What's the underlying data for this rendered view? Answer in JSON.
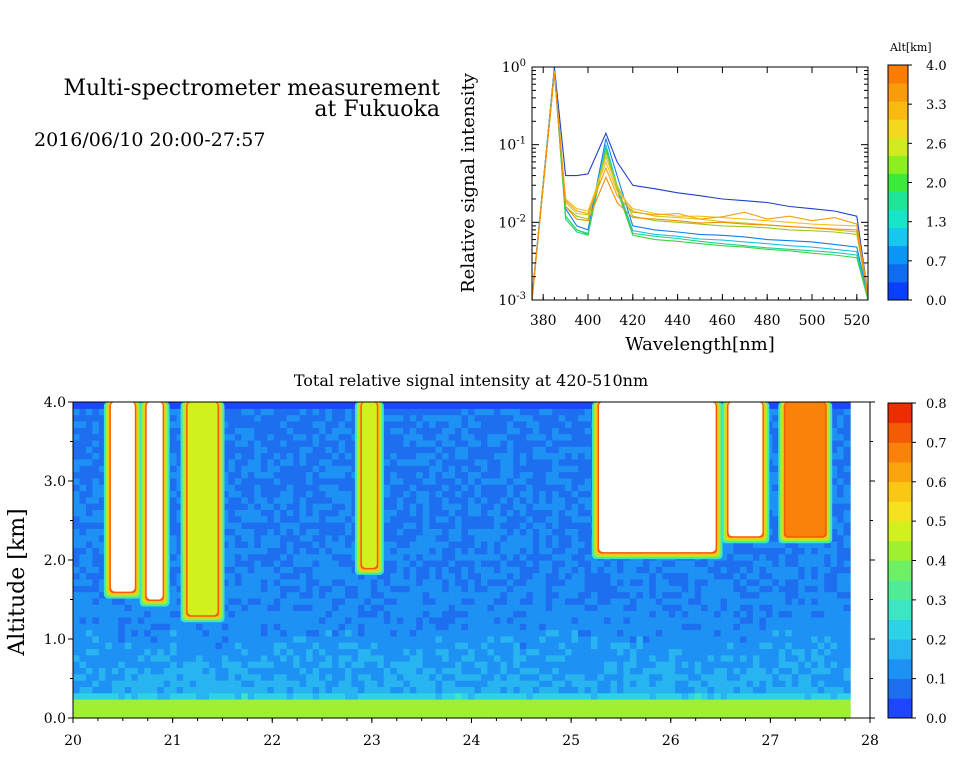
{
  "header": {
    "title_line1": "Multi-spectrometer measurement",
    "title_line2": "at Fukuoka",
    "datetime": "2016/06/10 20:00-27:57"
  },
  "chart_data": [
    {
      "type": "line",
      "xlabel": "Wavelength[nm]",
      "ylabel": "Relative signal intensity",
      "yscale": "log",
      "xlim": [
        375,
        525
      ],
      "ylim": [
        0.001,
        1
      ],
      "xticks": [
        380,
        400,
        420,
        440,
        460,
        480,
        500,
        520
      ],
      "yticks": [
        {
          "value": 0.001,
          "base": "10",
          "exp": "-3"
        },
        {
          "value": 0.01,
          "base": "10",
          "exp": "-2"
        },
        {
          "value": 0.1,
          "base": "10",
          "exp": "-1"
        },
        {
          "value": 1,
          "base": "10",
          "exp": "0"
        }
      ],
      "colorbar": {
        "title": "Alt[km]",
        "ticks": [
          "0.0",
          "0.7",
          "1.3",
          "2.0",
          "2.6",
          "3.3",
          "4.0"
        ],
        "colors": [
          "#0a3fff",
          "#0f6bf0",
          "#0a96f5",
          "#16c8f0",
          "#15e6c8",
          "#1ee696",
          "#3cea3c",
          "#8cf01e",
          "#d2eb1e",
          "#f5d71e",
          "#fab90f",
          "#fa9b0a",
          "#fa7d00"
        ]
      },
      "x": [
        375,
        385,
        390,
        395,
        400,
        408,
        413,
        420,
        430,
        440,
        450,
        460,
        470,
        480,
        490,
        500,
        510,
        520,
        525
      ],
      "series": [
        {
          "color": "#1f3fc6",
          "values": [
            0.001,
            1,
            0.04,
            0.04,
            0.042,
            0.14,
            0.06,
            0.03,
            0.027,
            0.024,
            0.022,
            0.02,
            0.019,
            0.018,
            0.016,
            0.015,
            0.014,
            0.012,
            0.0012
          ]
        },
        {
          "color": "#0f7ff0",
          "values": [
            0.0011,
            0.93,
            0.015,
            0.009,
            0.008,
            0.12,
            0.04,
            0.009,
            0.008,
            0.0075,
            0.007,
            0.0068,
            0.0065,
            0.006,
            0.0058,
            0.0056,
            0.0052,
            0.0048,
            0.0011
          ]
        },
        {
          "color": "#19c3e6",
          "values": [
            0.001,
            0.9,
            0.012,
            0.008,
            0.0072,
            0.1,
            0.03,
            0.0078,
            0.007,
            0.0066,
            0.0061,
            0.0059,
            0.0056,
            0.0053,
            0.005,
            0.0048,
            0.0045,
            0.0042,
            0.001
          ]
        },
        {
          "color": "#1ed296",
          "values": [
            0.001,
            0.88,
            0.011,
            0.0075,
            0.0068,
            0.09,
            0.028,
            0.0072,
            0.0066,
            0.0062,
            0.0057,
            0.0053,
            0.005,
            0.0047,
            0.0045,
            0.0043,
            0.0041,
            0.0038,
            0.001
          ]
        },
        {
          "color": "#3cd23c",
          "values": [
            0.001,
            0.87,
            0.012,
            0.008,
            0.007,
            0.085,
            0.026,
            0.0068,
            0.006,
            0.0057,
            0.0053,
            0.005,
            0.0048,
            0.0045,
            0.0043,
            0.004,
            0.0038,
            0.0035,
            0.001
          ]
        },
        {
          "color": "#a0c81e",
          "values": [
            0.001,
            0.86,
            0.016,
            0.012,
            0.011,
            0.08,
            0.03,
            0.012,
            0.0105,
            0.01,
            0.0095,
            0.009,
            0.0088,
            0.0085,
            0.008,
            0.0078,
            0.0075,
            0.007,
            0.0011
          ]
        },
        {
          "color": "#d2c81e",
          "values": [
            0.001,
            0.85,
            0.018,
            0.013,
            0.0125,
            0.07,
            0.028,
            0.014,
            0.012,
            0.0115,
            0.011,
            0.0102,
            0.0098,
            0.0093,
            0.0088,
            0.0085,
            0.008,
            0.0075,
            0.0012
          ]
        },
        {
          "color": "#f0c31e",
          "values": [
            0.001,
            0.85,
            0.02,
            0.015,
            0.014,
            0.06,
            0.025,
            0.015,
            0.013,
            0.012,
            0.012,
            0.0115,
            0.011,
            0.0105,
            0.01,
            0.0095,
            0.0092,
            0.009,
            0.0012
          ]
        },
        {
          "color": "#f5a00f",
          "values": [
            0.001,
            0.84,
            0.019,
            0.014,
            0.013,
            0.05,
            0.022,
            0.0135,
            0.0125,
            0.013,
            0.011,
            0.0118,
            0.0135,
            0.011,
            0.012,
            0.0105,
            0.0115,
            0.0095,
            0.0012
          ]
        },
        {
          "color": "#f58c0a",
          "values": [
            0.001,
            0.84,
            0.016,
            0.011,
            0.0105,
            0.038,
            0.018,
            0.0115,
            0.011,
            0.0105,
            0.0098,
            0.01,
            0.0095,
            0.0092,
            0.0088,
            0.0085,
            0.0082,
            0.008,
            0.0011
          ]
        }
      ]
    },
    {
      "type": "heatmap",
      "title": "Total relative signal intensity at 420-510nm",
      "ylabel": "Altitude [km]",
      "xlim": [
        20,
        28
      ],
      "ylim": [
        0,
        4
      ],
      "xticks": [
        "20",
        "21",
        "22",
        "23",
        "24",
        "25",
        "26",
        "27",
        "28"
      ],
      "yticks": [
        "0.0",
        "1.0",
        "2.0",
        "3.0",
        "4.0"
      ],
      "data_end_hour": 27.8,
      "colorbar": {
        "ticks": [
          "0.0",
          "0.1",
          "0.2",
          "0.3",
          "0.4",
          "0.5",
          "0.6",
          "0.7",
          "0.8"
        ],
        "colors": [
          "#1e46ff",
          "#1e6ef0",
          "#1e91f5",
          "#28b4f0",
          "#2dd2e6",
          "#3ce6c3",
          "#50eb96",
          "#6ef064",
          "#a0f032",
          "#d2f01e",
          "#f5e11e",
          "#fac814",
          "#faa50f",
          "#fa820a",
          "#f55a05",
          "#eb2d00"
        ]
      },
      "features": [
        {
          "label": "cloud",
          "x": [
            20.38,
            20.62
          ],
          "y": [
            1.6,
            4.0
          ],
          "value": 0.9
        },
        {
          "label": "cloud",
          "x": [
            20.74,
            20.9
          ],
          "y": [
            1.5,
            4.0
          ],
          "value": 0.9
        },
        {
          "label": "plume",
          "x": [
            21.15,
            21.45
          ],
          "y": [
            1.3,
            4.0
          ],
          "value": 0.45
        },
        {
          "label": "plume",
          "x": [
            22.9,
            23.05
          ],
          "y": [
            1.9,
            4.0
          ],
          "value": 0.45
        },
        {
          "label": "cloud",
          "x": [
            25.28,
            26.45
          ],
          "y": [
            2.1,
            4.0
          ],
          "value": 0.9
        },
        {
          "label": "cloud",
          "x": [
            26.58,
            26.92
          ],
          "y": [
            2.3,
            4.0
          ],
          "value": 0.9
        },
        {
          "label": "cloud",
          "x": [
            27.15,
            27.55
          ],
          "y": [
            2.3,
            4.0
          ],
          "value": 0.65
        }
      ]
    }
  ]
}
